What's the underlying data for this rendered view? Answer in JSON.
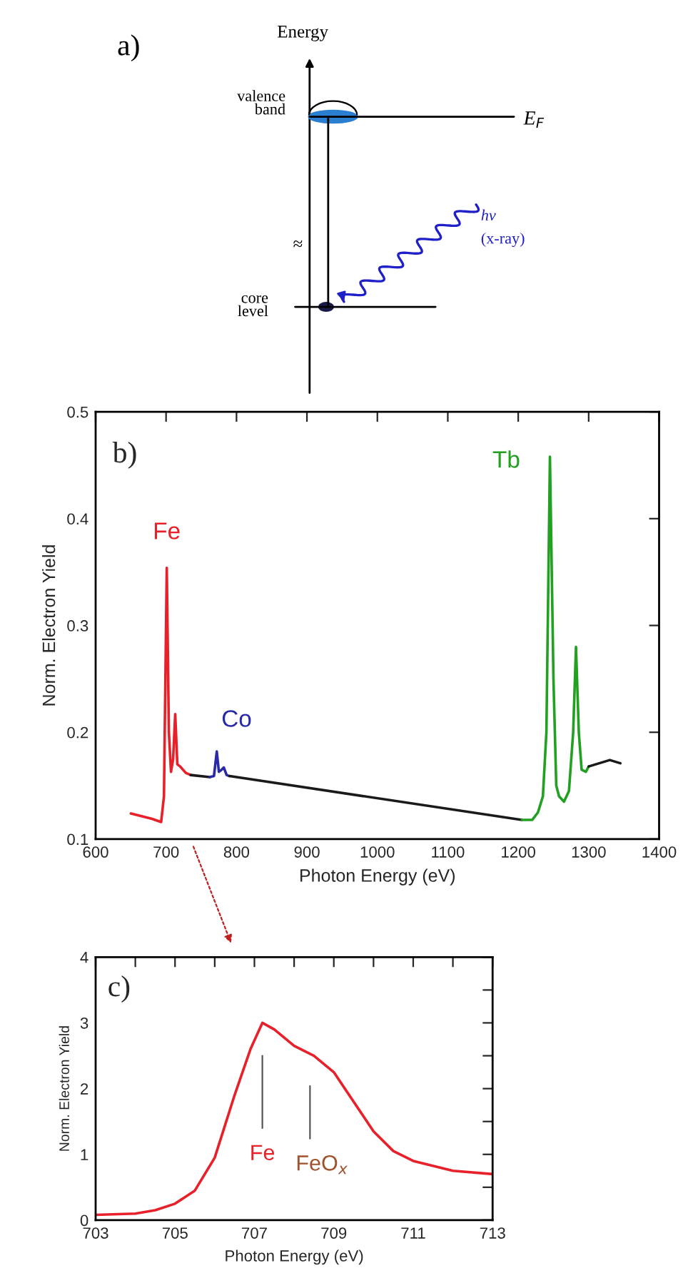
{
  "chart_data": [
    {
      "type": "other",
      "annotations": [
        "a)",
        "Energy",
        "valence\nband",
        "E$_{F}$",
        "hν",
        "(x-ray)",
        "≈",
        "core\nlevel"
      ]
    },
    {
      "type": "line",
      "xlabel": "Photon Energy (eV)",
      "ylabel": "Norm. Electron Yield",
      "annotations": [
        "b)"
      ],
      "xlim": [
        600,
        1400
      ],
      "ylim": [
        0.1,
        0.5
      ],
      "xticks": [
        600,
        700,
        800,
        900,
        1000,
        1100,
        1200,
        1300,
        1400
      ],
      "yticks": [
        0.1,
        0.2,
        0.3,
        0.4,
        0.5
      ],
      "grid": false,
      "legend": false,
      "series": [
        {
          "name": "Fe",
          "color": "#e8202a",
          "x": [
            650,
            680,
            693,
            697,
            701,
            704,
            707,
            710,
            713,
            716,
            720,
            728,
            735
          ],
          "values": [
            0.124,
            0.119,
            0.116,
            0.14,
            0.354,
            0.2,
            0.163,
            0.175,
            0.217,
            0.17,
            0.168,
            0.162,
            0.16
          ]
        },
        {
          "color": "#1a1a1a",
          "x": [
            735,
            762
          ],
          "values": [
            0.16,
            0.158
          ]
        },
        {
          "name": "Co",
          "color": "#2a2aa8",
          "x": [
            762,
            768,
            772,
            775,
            779,
            782,
            786,
            790
          ],
          "values": [
            0.158,
            0.159,
            0.182,
            0.163,
            0.165,
            0.167,
            0.16,
            0.159
          ]
        },
        {
          "color": "#1a1a1a",
          "x": [
            790,
            1205
          ],
          "values": [
            0.159,
            0.118
          ]
        },
        {
          "name": "Tb",
          "color": "#22a022",
          "x": [
            1205,
            1220,
            1228,
            1235,
            1240,
            1245,
            1250,
            1254,
            1258,
            1265,
            1272,
            1278,
            1282,
            1286,
            1290,
            1296,
            1300
          ],
          "values": [
            0.118,
            0.118,
            0.125,
            0.14,
            0.2,
            0.458,
            0.25,
            0.15,
            0.14,
            0.135,
            0.145,
            0.2,
            0.28,
            0.2,
            0.165,
            0.163,
            0.168
          ]
        },
        {
          "color": "#1a1a1a",
          "x": [
            1300,
            1310,
            1320,
            1330,
            1345
          ],
          "values": [
            0.168,
            0.17,
            0.172,
            0.174,
            0.171
          ]
        }
      ]
    },
    {
      "type": "line",
      "xlabel": "Photon Energy (eV)",
      "ylabel": "Norm. Electron Yield",
      "xlim": [
        703,
        713
      ],
      "ylim": [
        0,
        4
      ],
      "grid": false,
      "legend": false,
      "xticks": [
        703,
        {
          "value": 704,
          "label": null
        },
        705,
        {
          "value": 706,
          "label": null
        },
        707,
        {
          "value": 708,
          "label": null
        },
        709,
        {
          "value": 710,
          "label": null
        },
        711,
        {
          "value": 712,
          "label": null
        },
        713
      ],
      "yticks": [
        0,
        {
          "value": 0.5,
          "label": null
        },
        1,
        {
          "value": 1.5,
          "label": null
        },
        2,
        {
          "value": 2.5,
          "label": null
        },
        3,
        {
          "value": 3.5,
          "label": null
        },
        4
      ],
      "annotations": [
        "c)",
        "Fe",
        "FeO$_{x}$"
      ],
      "series": [
        {
          "color": "#e8202a",
          "x": [
            703,
            704,
            704.5,
            705,
            705.5,
            706,
            706.5,
            706.9,
            707.2,
            707.5,
            708,
            708.5,
            709,
            709.5,
            710,
            710.5,
            711,
            712,
            713
          ],
          "values": [
            0.08,
            0.1,
            0.15,
            0.25,
            0.45,
            0.95,
            1.9,
            2.6,
            3.0,
            2.9,
            2.65,
            2.5,
            2.25,
            1.8,
            1.35,
            1.05,
            0.9,
            0.75,
            0.7
          ]
        }
      ]
    }
  ]
}
